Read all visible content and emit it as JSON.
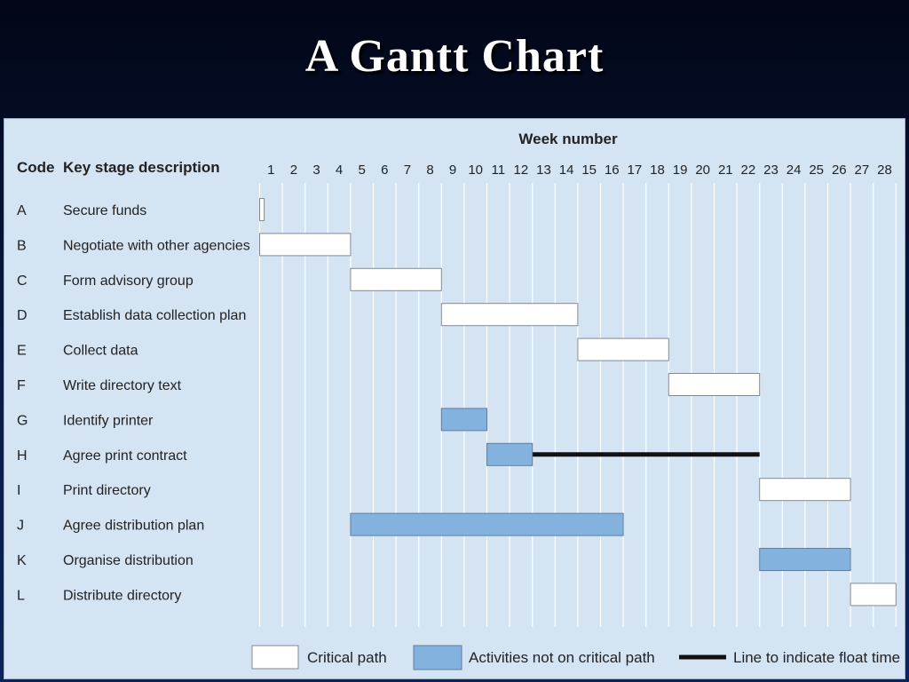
{
  "title": "A Gantt Chart",
  "chart_data": {
    "type": "gantt",
    "header": {
      "week_number": "Week number",
      "code": "Code",
      "description": "Key stage description"
    },
    "weeks": [
      1,
      2,
      3,
      4,
      5,
      6,
      7,
      8,
      9,
      10,
      11,
      12,
      13,
      14,
      15,
      16,
      17,
      18,
      19,
      20,
      21,
      22,
      23,
      24,
      25,
      26,
      27,
      28
    ],
    "tasks": [
      {
        "code": "A",
        "label": "Secure funds",
        "start": 1,
        "end": 1.2,
        "critical": true
      },
      {
        "code": "B",
        "label": "Negotiate with other agencies",
        "start": 1,
        "end": 5,
        "critical": true
      },
      {
        "code": "C",
        "label": "Form advisory group",
        "start": 5,
        "end": 9,
        "critical": true
      },
      {
        "code": "D",
        "label": "Establish data collection plan",
        "start": 9,
        "end": 15,
        "critical": true
      },
      {
        "code": "E",
        "label": "Collect data",
        "start": 15,
        "end": 19,
        "critical": true
      },
      {
        "code": "F",
        "label": "Write directory text",
        "start": 19,
        "end": 23,
        "critical": true
      },
      {
        "code": "G",
        "label": "Identify printer",
        "start": 9,
        "end": 11,
        "critical": false
      },
      {
        "code": "H",
        "label": "Agree print contract",
        "start": 11,
        "end": 13,
        "critical": false,
        "float_end": 23
      },
      {
        "code": "I",
        "label": "Print directory",
        "start": 23,
        "end": 27,
        "critical": true
      },
      {
        "code": "J",
        "label": "Agree distribution plan",
        "start": 5,
        "end": 17,
        "critical": false
      },
      {
        "code": "K",
        "label": "Organise distribution",
        "start": 23,
        "end": 27,
        "critical": false
      },
      {
        "code": "L",
        "label": "Distribute directory",
        "start": 27,
        "end": 29,
        "critical": true
      }
    ],
    "legend": {
      "critical": "Critical path",
      "noncritical": "Activities not on critical path",
      "float": "Line to indicate float time"
    },
    "colors": {
      "critical_fill": "#ffffff",
      "noncritical_fill": "#84b2df",
      "float_line": "#111111",
      "grid": "#ffffff",
      "panel": "#d5e4f3"
    }
  }
}
